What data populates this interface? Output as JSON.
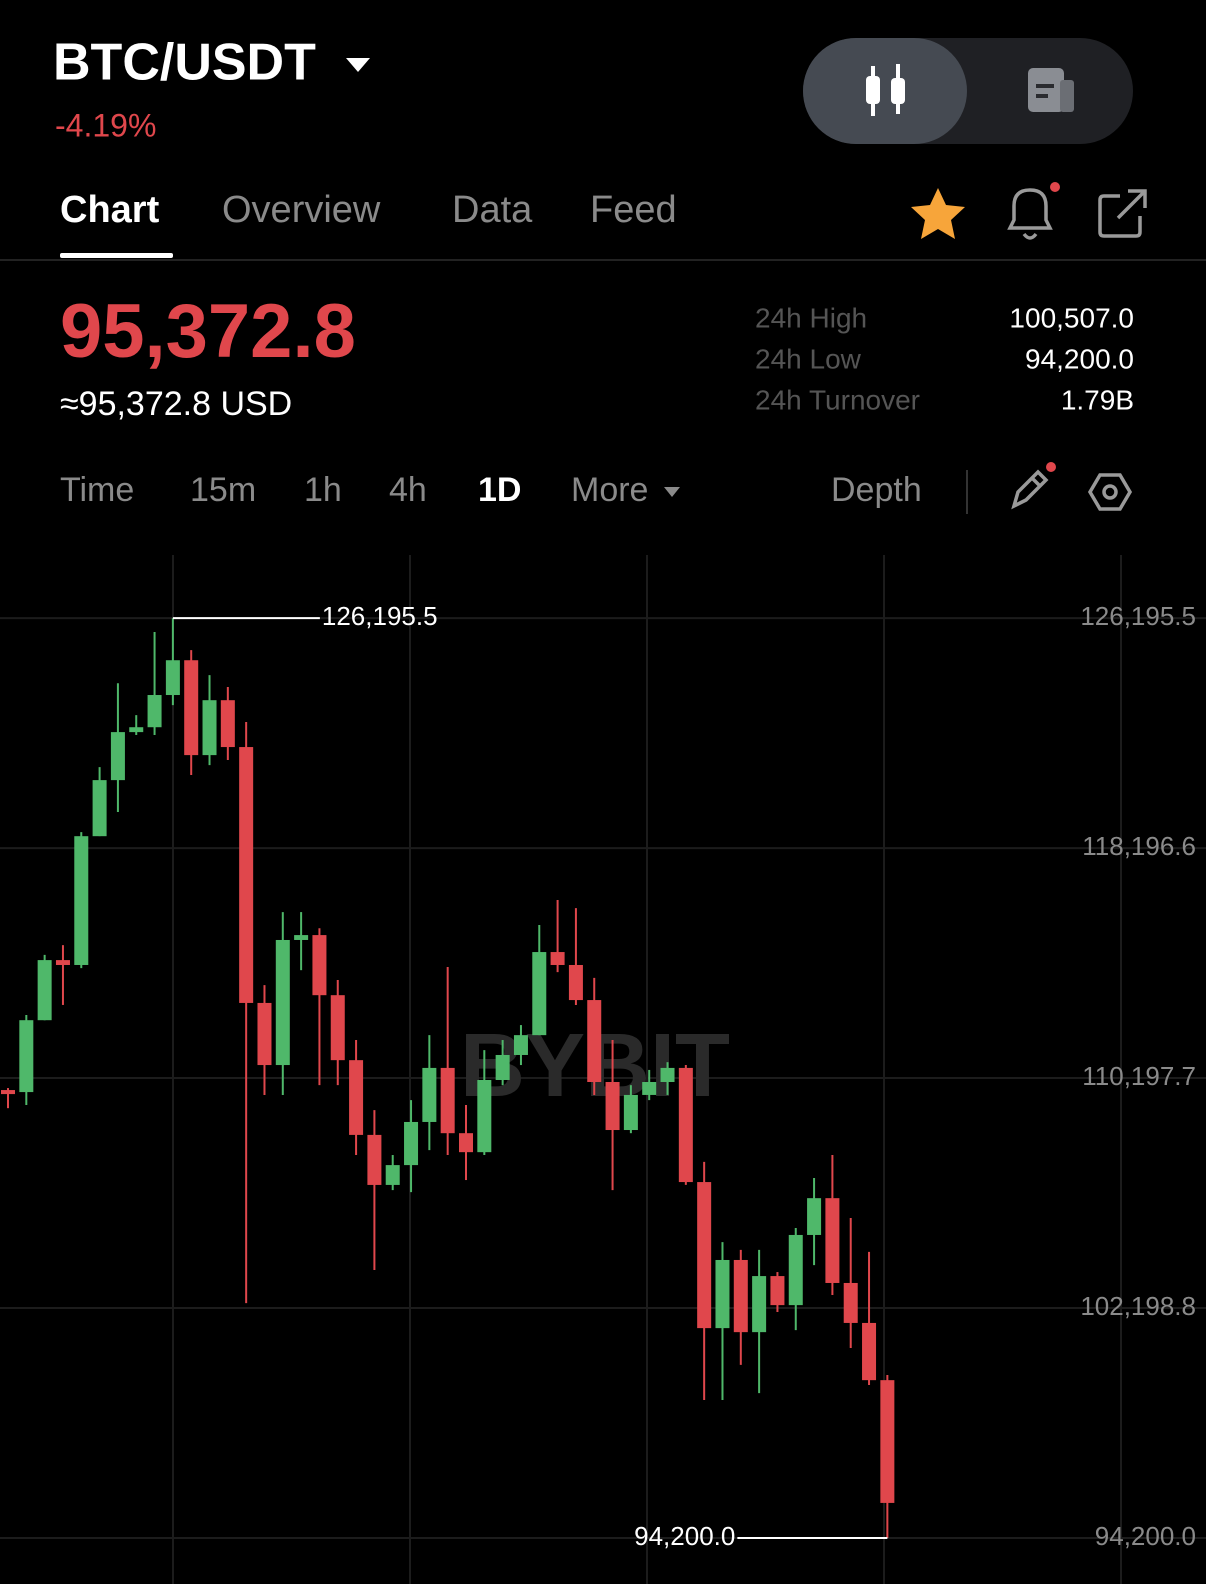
{
  "header": {
    "pair": "BTC/USDT",
    "change": "-4.19%"
  },
  "tabs": [
    "Chart",
    "Overview",
    "Data",
    "Feed"
  ],
  "price": {
    "last": "95,372.8",
    "usd": "≈95,372.8 USD"
  },
  "stats": [
    {
      "label": "24h High",
      "value": "100,507.0"
    },
    {
      "label": "24h Low",
      "value": "94,200.0"
    },
    {
      "label": "24h Turnover",
      "value": "1.79B"
    }
  ],
  "intervals": [
    "Time",
    "15m",
    "1h",
    "4h",
    "1D",
    "More"
  ],
  "depth": "Depth",
  "chart_data": {
    "type": "candlestick",
    "watermark": "BYBIT",
    "up_color": "#4fb86a",
    "down_color": "#e0474c",
    "ylim": [
      92600,
      128390
    ],
    "yticks": [
      {
        "value": 126195.5,
        "label": "126,195.5"
      },
      {
        "value": 118196.6,
        "label": "118,196.6"
      },
      {
        "value": 110197.7,
        "label": "110,197.7"
      },
      {
        "value": 102198.8,
        "label": "102,198.8"
      },
      {
        "value": 94200.0,
        "label": "94,200.0"
      }
    ],
    "grid": true,
    "annotations": [
      {
        "value": 126195.5,
        "label": "126,195.5",
        "index": 9
      },
      {
        "value": 94200.0,
        "label": "94,200.0",
        "index": 48
      }
    ],
    "open": [
      109780,
      109710,
      112210,
      114300,
      114130,
      118610,
      120560,
      122230,
      122400,
      123520,
      124730,
      121430,
      123340,
      121710,
      112810,
      110650,
      115000,
      115170,
      113080,
      110820,
      108220,
      106480,
      107170,
      108670,
      110550,
      108280,
      107620,
      110130,
      111000,
      111690,
      114580,
      114130,
      112910,
      110060,
      108390,
      109610,
      110060,
      110550,
      106580,
      101500,
      103870,
      101360,
      103310,
      102300,
      104740,
      106020,
      103070,
      101680,
      99690
    ],
    "high": [
      109850,
      112390,
      114480,
      114820,
      118750,
      121010,
      123930,
      122820,
      125710,
      126195.5,
      125080,
      124210,
      123800,
      122580,
      113430,
      115970,
      115970,
      115410,
      113610,
      111520,
      109080,
      107520,
      109430,
      111690,
      114060,
      109260,
      111170,
      111520,
      112040,
      115520,
      116390,
      116110,
      113680,
      111520,
      109950,
      110480,
      110750,
      110650,
      107280,
      104490,
      104220,
      104220,
      103450,
      104980,
      106720,
      107520,
      105330,
      104150,
      99870
    ],
    "low": [
      109150,
      109260,
      112210,
      112740,
      114020,
      118610,
      119450,
      122130,
      122130,
      123170,
      120740,
      121080,
      121260,
      102370,
      109610,
      109610,
      113950,
      109950,
      109950,
      107520,
      103520,
      106300,
      106230,
      107690,
      107520,
      106650,
      107520,
      109950,
      110650,
      111690,
      113880,
      112740,
      109610,
      106300,
      108280,
      109430,
      109610,
      106480,
      99000,
      99000,
      100220,
      99240,
      102060,
      101430,
      103690,
      102650,
      100810,
      99520,
      94200.0
    ],
    "close": [
      109640,
      112210,
      114300,
      114130,
      118610,
      120560,
      122230,
      122400,
      123520,
      124730,
      121430,
      123340,
      121710,
      112810,
      110650,
      115000,
      115170,
      113080,
      110820,
      108220,
      106480,
      107170,
      108670,
      110550,
      108280,
      107620,
      110130,
      111000,
      111690,
      114580,
      114130,
      112910,
      110060,
      108390,
      109610,
      110060,
      110550,
      106580,
      101500,
      103870,
      101360,
      103310,
      102300,
      104740,
      106020,
      103070,
      101680,
      99690,
      95420
    ]
  }
}
